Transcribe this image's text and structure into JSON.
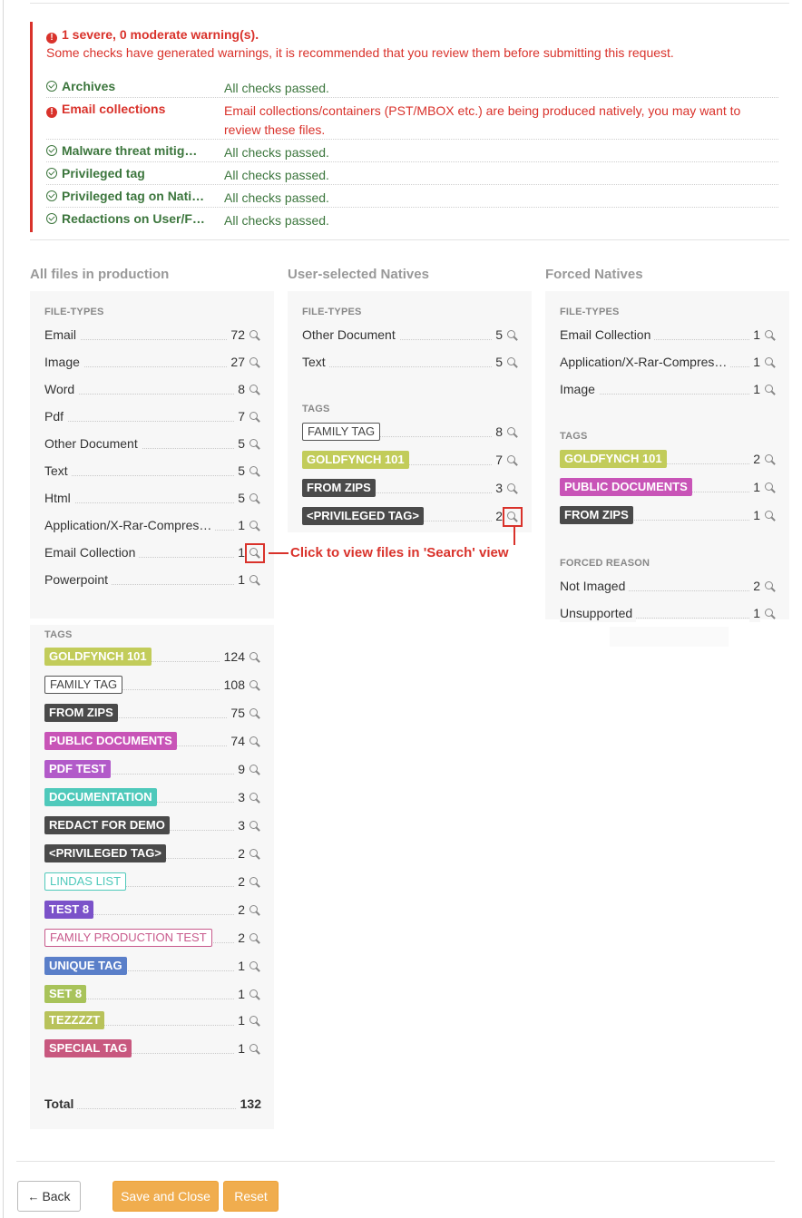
{
  "warnings": {
    "header": "1 severe, 0 moderate warning(s).",
    "subtext": "Some checks have generated warnings, it is recommended that you review them before submitting this request.",
    "checks": [
      {
        "name": "Archives",
        "status": "ok",
        "message": "All checks passed."
      },
      {
        "name": "Email collections",
        "status": "error",
        "message": "Email collections/containers (PST/MBOX etc.) are being produced natively, you may want to review these files."
      },
      {
        "name": "Malware threat mitig…",
        "status": "ok",
        "message": "All checks passed."
      },
      {
        "name": "Privileged tag",
        "status": "ok",
        "message": "All checks passed."
      },
      {
        "name": "Privileged tag on Nati…",
        "status": "ok",
        "message": "All checks passed."
      },
      {
        "name": "Redactions on User/F…",
        "status": "ok",
        "message": "All checks passed."
      }
    ]
  },
  "columns": {
    "all": {
      "title": "All files in production",
      "filetypes_label": "FILE-TYPES",
      "filetypes": [
        {
          "label": "Email",
          "count": "72"
        },
        {
          "label": "Image",
          "count": "27"
        },
        {
          "label": "Word",
          "count": "8"
        },
        {
          "label": "Pdf",
          "count": "7"
        },
        {
          "label": "Other Document",
          "count": "5"
        },
        {
          "label": "Text",
          "count": "5"
        },
        {
          "label": "Html",
          "count": "5"
        },
        {
          "label": "Application/X-Rar-Compres…",
          "count": "1"
        },
        {
          "label": "Email Collection",
          "count": "1"
        },
        {
          "label": "Powerpoint",
          "count": "1"
        }
      ],
      "tags_label": "TAGS",
      "tags": [
        {
          "label": "GOLDFYNCH 101",
          "count": "124",
          "color": "#c2cc5a",
          "style": "solid"
        },
        {
          "label": "FAMILY TAG",
          "count": "108",
          "color": "#555555",
          "style": "outline"
        },
        {
          "label": "FROM ZIPS",
          "count": "75",
          "color": "#4a4a4a",
          "style": "solid"
        },
        {
          "label": "PUBLIC DOCUMENTS",
          "count": "74",
          "color": "#c854b7",
          "style": "solid"
        },
        {
          "label": "PDF TEST",
          "count": "9",
          "color": "#b25ac9",
          "style": "solid"
        },
        {
          "label": "DOCUMENTATION",
          "count": "3",
          "color": "#4fc9bb",
          "style": "solid"
        },
        {
          "label": "REDACT FOR DEMO",
          "count": "3",
          "color": "#4a4a4a",
          "style": "solid"
        },
        {
          "label": "<PRIVILEGED TAG>",
          "count": "2",
          "color": "#4a4a4a",
          "style": "solid"
        },
        {
          "label": "LINDAS LIST",
          "count": "2",
          "color": "#4fc9bb",
          "style": "outline"
        },
        {
          "label": "TEST 8",
          "count": "2",
          "color": "#7b52c9",
          "style": "solid"
        },
        {
          "label": "FAMILY PRODUCTION TEST",
          "count": "2",
          "color": "#c85a8c",
          "style": "outline"
        },
        {
          "label": "UNIQUE TAG",
          "count": "1",
          "color": "#5a7fc9",
          "style": "solid"
        },
        {
          "label": "SET 8",
          "count": "1",
          "color": "#a8c35a",
          "style": "solid"
        },
        {
          "label": "TEZZZZT",
          "count": "1",
          "color": "#b8c25a",
          "style": "solid"
        },
        {
          "label": "SPECIAL TAG",
          "count": "1",
          "color": "#c8587f",
          "style": "solid"
        }
      ],
      "total_label": "Total",
      "total": "132"
    },
    "user": {
      "title": "User-selected Natives",
      "filetypes_label": "FILE-TYPES",
      "filetypes": [
        {
          "label": "Other Document",
          "count": "5"
        },
        {
          "label": "Text",
          "count": "5"
        }
      ],
      "tags_label": "TAGS",
      "tags": [
        {
          "label": "FAMILY TAG",
          "count": "8",
          "color": "#555555",
          "style": "outline"
        },
        {
          "label": "GOLDFYNCH 101",
          "count": "7",
          "color": "#c2cc5a",
          "style": "solid"
        },
        {
          "label": "FROM ZIPS",
          "count": "3",
          "color": "#4a4a4a",
          "style": "solid"
        },
        {
          "label": "<PRIVILEGED TAG>",
          "count": "2",
          "color": "#4a4a4a",
          "style": "solid"
        }
      ]
    },
    "forced": {
      "title": "Forced Natives",
      "filetypes_label": "FILE-TYPES",
      "filetypes": [
        {
          "label": "Email Collection",
          "count": "1"
        },
        {
          "label": "Application/X-Rar-Compres…",
          "count": "1"
        },
        {
          "label": "Image",
          "count": "1"
        }
      ],
      "tags_label": "TAGS",
      "tags": [
        {
          "label": "GOLDFYNCH 101",
          "count": "2",
          "color": "#c2cc5a",
          "style": "solid"
        },
        {
          "label": "PUBLIC DOCUMENTS",
          "count": "1",
          "color": "#c854b7",
          "style": "solid"
        },
        {
          "label": "FROM ZIPS",
          "count": "1",
          "color": "#4a4a4a",
          "style": "solid"
        }
      ],
      "reason_label": "FORCED REASON",
      "reasons": [
        {
          "label": "Not Imaged",
          "count": "2"
        },
        {
          "label": "Unsupported",
          "count": "1"
        }
      ]
    }
  },
  "annotation": "Click to view files in 'Search' view",
  "buttons": {
    "back": "Back",
    "save": "Save and Close",
    "reset": "Reset"
  },
  "colors": {
    "error": "#d9322b",
    "ok": "#3c763d",
    "accent": "#f0ad4e"
  },
  "icons": {
    "error": "exclamation-circle-icon",
    "ok": "check-circle-icon",
    "view": "magnifier-icon",
    "back": "arrow-left-icon"
  }
}
